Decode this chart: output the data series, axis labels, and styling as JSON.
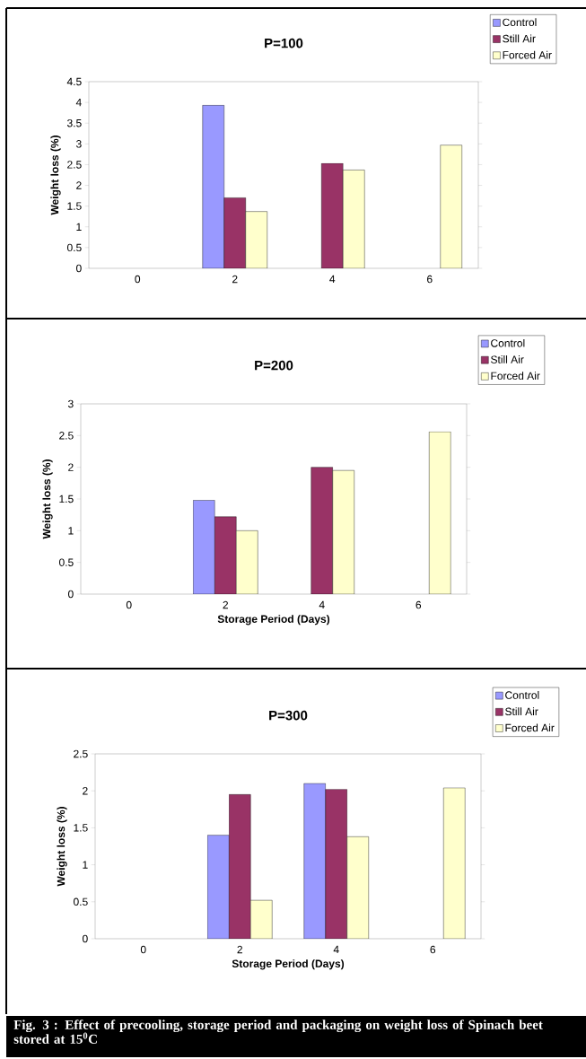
{
  "chart_data": [
    {
      "type": "bar",
      "title": "P=100",
      "ylabel": "Weight loss (%)",
      "categories": [
        "0",
        "2",
        "4",
        "6"
      ],
      "series": [
        {
          "name": "Control",
          "color": "#9999ff",
          "values": [
            null,
            3.93,
            null,
            null
          ]
        },
        {
          "name": "Still Air",
          "color": "#993366",
          "values": [
            null,
            1.7,
            2.53,
            null
          ]
        },
        {
          "name": "Forced Air",
          "color": "#ffffcc",
          "values": [
            null,
            1.37,
            2.37,
            2.97
          ]
        }
      ],
      "ylim": [
        0,
        4.5
      ],
      "yticks": [
        0,
        0.5,
        1,
        1.5,
        2,
        2.5,
        3,
        3.5,
        4,
        4.5
      ],
      "grid": false,
      "legend": "top right"
    },
    {
      "type": "bar",
      "title": "P=200",
      "xlabel": "Storage Period (Days)",
      "ylabel": "Weight loss (%)",
      "categories": [
        "0",
        "2",
        "4",
        "6"
      ],
      "series": [
        {
          "name": "Control",
          "color": "#9999ff",
          "values": [
            null,
            1.48,
            null,
            null
          ]
        },
        {
          "name": "Still Air",
          "color": "#993366",
          "values": [
            null,
            1.22,
            2.0,
            null
          ]
        },
        {
          "name": "Forced Air",
          "color": "#ffffcc",
          "values": [
            null,
            1.0,
            1.95,
            2.56
          ]
        }
      ],
      "ylim": [
        0,
        3
      ],
      "yticks": [
        0,
        0.5,
        1,
        1.5,
        2,
        2.5,
        3
      ],
      "grid": false,
      "legend": "top right"
    },
    {
      "type": "bar",
      "title": "P=300",
      "xlabel": "Storage Period (Days)",
      "ylabel": "Weight loss (%)",
      "categories": [
        "0",
        "2",
        "4",
        "6"
      ],
      "series": [
        {
          "name": "Control",
          "color": "#9999ff",
          "values": [
            null,
            1.4,
            2.1,
            null
          ]
        },
        {
          "name": "Still Air",
          "color": "#993366",
          "values": [
            null,
            1.95,
            2.02,
            null
          ]
        },
        {
          "name": "Forced Air",
          "color": "#ffffcc",
          "values": [
            null,
            0.52,
            1.38,
            2.04
          ]
        }
      ],
      "ylim": [
        0,
        2.5
      ],
      "yticks": [
        0,
        0.5,
        1,
        1.5,
        2,
        2.5
      ],
      "grid": false,
      "legend": "top right",
      "annotations": [
        "Fig. 3 : Effect of precooling, storage period and packaging on weight loss of Spinach beet stored at 15$^{0}$C"
      ]
    }
  ]
}
